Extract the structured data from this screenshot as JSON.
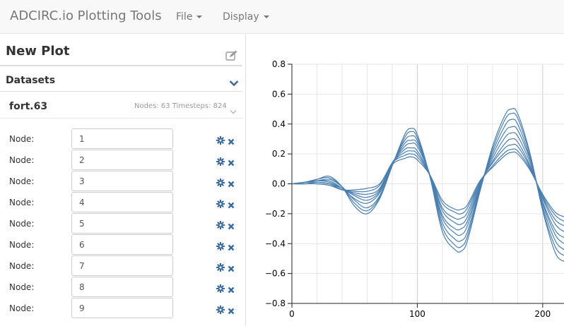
{
  "navbar": {
    "brand": "ADCIRC.io Plotting Tools",
    "menus": [
      {
        "label": "File"
      },
      {
        "label": "Display"
      }
    ]
  },
  "sidebar": {
    "plot_title": "New Plot",
    "datasets_label": "Datasets",
    "file": {
      "name": "fort.63",
      "info": "Nodes: 63 Timesteps: 824"
    },
    "node_label": "Node:",
    "nodes": [
      "1",
      "2",
      "3",
      "4",
      "5",
      "6",
      "7",
      "8",
      "9"
    ]
  },
  "colors": {
    "line": "#4a7fb0",
    "grid": "#e6e6e6",
    "grid_major": "#cccccc",
    "icon": "#3a6a9a"
  },
  "icons": [
    "edit-icon",
    "chevron-down-icon",
    "gear-icon",
    "close-icon"
  ],
  "chart_data": {
    "type": "line",
    "title": "",
    "xlabel": "",
    "ylabel": "",
    "ylim": [
      -0.8,
      0.8
    ],
    "xlim": [
      0,
      217
    ],
    "y_ticks": [
      "0.8",
      "0.6",
      "0.4",
      "0.2",
      "0.0",
      "−0.2",
      "−0.4",
      "−0.6",
      "−0.8"
    ],
    "x_ticks": [
      "0",
      "100",
      "200"
    ],
    "grid": true,
    "series_count": 9,
    "x": [
      0,
      10,
      20,
      30,
      40,
      50,
      60,
      70,
      80,
      90,
      95,
      100,
      110,
      120,
      130,
      135,
      140,
      150,
      160,
      170,
      175,
      180,
      190,
      200,
      210,
      217
    ],
    "series": [
      {
        "values": [
          0,
          0.01,
          0.03,
          0.05,
          -0.02,
          -0.15,
          -0.2,
          -0.1,
          0.12,
          0.33,
          0.37,
          0.33,
          0.05,
          -0.32,
          -0.44,
          -0.45,
          -0.38,
          -0.05,
          0.25,
          0.46,
          0.5,
          0.47,
          0.2,
          -0.18,
          -0.46,
          -0.52
        ]
      },
      {
        "values": [
          0,
          0.01,
          0.03,
          0.04,
          -0.02,
          -0.13,
          -0.18,
          -0.09,
          0.12,
          0.31,
          0.35,
          0.31,
          0.05,
          -0.29,
          -0.41,
          -0.42,
          -0.35,
          -0.04,
          0.23,
          0.43,
          0.47,
          0.44,
          0.19,
          -0.17,
          -0.42,
          -0.48
        ]
      },
      {
        "values": [
          0,
          0.01,
          0.02,
          0.03,
          -0.02,
          -0.11,
          -0.16,
          -0.08,
          0.13,
          0.29,
          0.32,
          0.29,
          0.06,
          -0.26,
          -0.37,
          -0.38,
          -0.32,
          -0.03,
          0.21,
          0.39,
          0.43,
          0.4,
          0.17,
          -0.15,
          -0.38,
          -0.44
        ]
      },
      {
        "values": [
          0,
          0.01,
          0.02,
          0.02,
          -0.03,
          -0.1,
          -0.13,
          -0.06,
          0.13,
          0.27,
          0.29,
          0.27,
          0.06,
          -0.23,
          -0.33,
          -0.34,
          -0.28,
          -0.02,
          0.19,
          0.35,
          0.38,
          0.36,
          0.16,
          -0.13,
          -0.34,
          -0.4
        ]
      },
      {
        "values": [
          0,
          0.01,
          0.02,
          0.01,
          -0.03,
          -0.08,
          -0.11,
          -0.05,
          0.14,
          0.25,
          0.27,
          0.25,
          0.06,
          -0.21,
          -0.3,
          -0.3,
          -0.25,
          -0.01,
          0.17,
          0.31,
          0.34,
          0.32,
          0.14,
          -0.12,
          -0.31,
          -0.36
        ]
      },
      {
        "values": [
          0,
          0.01,
          0.01,
          0.0,
          -0.03,
          -0.07,
          -0.09,
          -0.04,
          0.14,
          0.23,
          0.24,
          0.22,
          0.06,
          -0.18,
          -0.26,
          -0.27,
          -0.22,
          0.0,
          0.15,
          0.27,
          0.3,
          0.28,
          0.12,
          -0.1,
          -0.27,
          -0.32
        ]
      },
      {
        "values": [
          0,
          0.0,
          0.01,
          0.0,
          -0.04,
          -0.06,
          -0.07,
          -0.03,
          0.14,
          0.21,
          0.22,
          0.2,
          0.06,
          -0.16,
          -0.23,
          -0.23,
          -0.19,
          0.01,
          0.14,
          0.24,
          0.26,
          0.25,
          0.11,
          -0.09,
          -0.24,
          -0.28
        ]
      },
      {
        "values": [
          0,
          0.0,
          0.0,
          -0.01,
          -0.04,
          -0.05,
          -0.05,
          -0.01,
          0.14,
          0.19,
          0.2,
          0.18,
          0.06,
          -0.13,
          -0.19,
          -0.2,
          -0.16,
          0.01,
          0.12,
          0.21,
          0.23,
          0.22,
          0.1,
          -0.08,
          -0.21,
          -0.25
        ]
      },
      {
        "values": [
          0,
          0.0,
          0.0,
          -0.01,
          -0.04,
          -0.04,
          -0.03,
          0.0,
          0.13,
          0.17,
          0.18,
          0.16,
          0.06,
          -0.11,
          -0.17,
          -0.17,
          -0.14,
          0.02,
          0.11,
          0.19,
          0.21,
          0.2,
          0.09,
          -0.07,
          -0.19,
          -0.22
        ]
      }
    ]
  }
}
